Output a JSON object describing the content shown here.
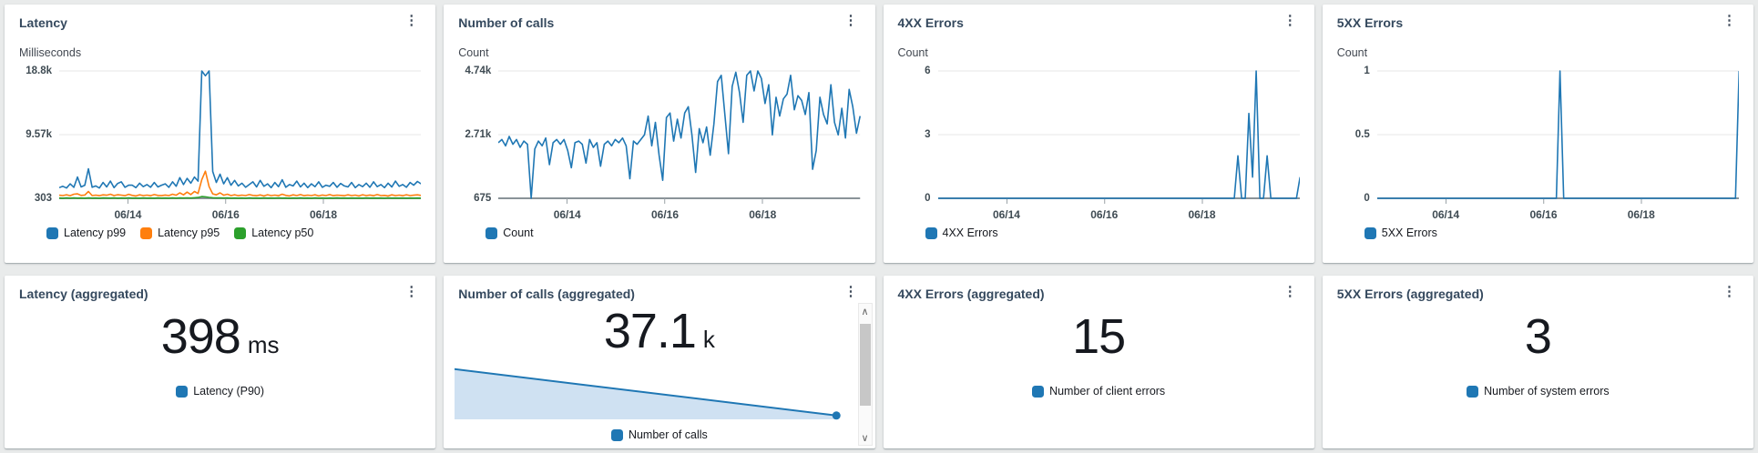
{
  "icons": {
    "ellipsis": "⋮",
    "scroll_up": "∧",
    "scroll_down": "∨"
  },
  "colors": {
    "series_blue": "#1f77b4",
    "series_orange": "#ff7f0e",
    "series_green": "#2ca02c",
    "area_fill": "#cfe1f2",
    "background": "#e9ebeb",
    "card": "#ffffff"
  },
  "agg": [
    {
      "title": "Latency (aggregated)",
      "value": "398",
      "unit": "ms",
      "legend": "Latency (P90)"
    },
    {
      "title": "Number of calls (aggregated)",
      "value": "37.1",
      "unit": "k",
      "legend": "Number of calls"
    },
    {
      "title": "4XX Errors (aggregated)",
      "value": "15",
      "unit": "",
      "legend": "Number of client errors"
    },
    {
      "title": "5XX Errors (aggregated)",
      "value": "3",
      "unit": "",
      "legend": "Number of system errors"
    }
  ],
  "chart_data": [
    {
      "id": "latency",
      "type": "line",
      "title": "Latency",
      "ylabel": "Milliseconds",
      "ylim": [
        303,
        18800
      ],
      "grid": true,
      "legend_position": "bottom",
      "yticks": [
        {
          "label": "18.8k",
          "value": 18800
        },
        {
          "label": "9.57k",
          "value": 9570
        },
        {
          "label": "303",
          "value": 303
        }
      ],
      "xticks": [
        {
          "label": "06/14",
          "pos": 0.19
        },
        {
          "label": "06/16",
          "pos": 0.46
        },
        {
          "label": "06/18",
          "pos": 0.73
        }
      ],
      "series": [
        {
          "name": "Latency p99",
          "color": "#1f77b4",
          "values": [
            1850,
            2050,
            1800,
            2400,
            1900,
            3400,
            1950,
            2200,
            4600,
            1900,
            2100,
            1800,
            2600,
            1950,
            2800,
            1850,
            2450,
            2700,
            1900,
            2200,
            2200,
            1850,
            2500,
            2000,
            2300,
            1900,
            2600,
            1950,
            2200,
            2400,
            1900,
            2700,
            2050,
            3300,
            2300,
            3200,
            2500,
            3400,
            2800,
            18800,
            18100,
            18800,
            4200,
            2600,
            3800,
            2400,
            3300,
            2200,
            2900,
            2100,
            2500,
            1900,
            2300,
            2700,
            1950,
            2900,
            2050,
            2400,
            1850,
            2600,
            2000,
            3000,
            1900,
            2300,
            2100,
            2800,
            1950,
            2500,
            1850,
            2400,
            2000,
            2700,
            1900,
            2200,
            2050,
            2600,
            1900,
            2450,
            2100,
            1950,
            2600,
            1850,
            2300,
            2000,
            2500,
            1900,
            2700,
            2000,
            2300,
            1850,
            2500,
            1950,
            2800,
            2050,
            2300,
            1900,
            2600,
            2200,
            2750,
            2400
          ]
        },
        {
          "name": "Latency p95",
          "color": "#ff7f0e",
          "values": [
            750,
            700,
            820,
            680,
            900,
            950,
            720,
            780,
            1300,
            700,
            760,
            690,
            800,
            750,
            900,
            700,
            820,
            760,
            680,
            880,
            720,
            650,
            800,
            700,
            760,
            680,
            850,
            720,
            690,
            780,
            700,
            900,
            750,
            1100,
            800,
            1200,
            850,
            1300,
            1000,
            3000,
            4240,
            2000,
            950,
            800,
            1100,
            750,
            900,
            700,
            820,
            680,
            760,
            700,
            850,
            720,
            680,
            790,
            650,
            820,
            700,
            760,
            680,
            900,
            720,
            650,
            800,
            700,
            850,
            680,
            760,
            700,
            820,
            650,
            780,
            700,
            850,
            690,
            760,
            720,
            680,
            800,
            700,
            760,
            650,
            820,
            700,
            780,
            680,
            850,
            700,
            720,
            650,
            800,
            700,
            760,
            680,
            820,
            700,
            750,
            800,
            720
          ]
        },
        {
          "name": "Latency p50",
          "color": "#2ca02c",
          "values": [
            340,
            320,
            350,
            330,
            360,
            325,
            345,
            315,
            355,
            330,
            340,
            320,
            360,
            345,
            330,
            350,
            320,
            340,
            330,
            355,
            325,
            340,
            320,
            350,
            330,
            345,
            320,
            355,
            330,
            340,
            325,
            350,
            335,
            360,
            340,
            370,
            345,
            380,
            420,
            550,
            520,
            430,
            380,
            350,
            360,
            340,
            355,
            330,
            345,
            325,
            340,
            320,
            350,
            330,
            345,
            320,
            355,
            330,
            340,
            325,
            350,
            330,
            340,
            320,
            345,
            330,
            350,
            325,
            340,
            320,
            350,
            330,
            345,
            320,
            340,
            330,
            350,
            325,
            340,
            320,
            345,
            330,
            340,
            320,
            350,
            330,
            345,
            325,
            340,
            320,
            350,
            330,
            340,
            325,
            345,
            320,
            340,
            330,
            345,
            335
          ]
        }
      ]
    },
    {
      "id": "calls",
      "type": "line",
      "title": "Number of calls",
      "ylabel": "Count",
      "ylim": [
        675,
        4740
      ],
      "grid": true,
      "legend_position": "bottom",
      "yticks": [
        {
          "label": "4.74k",
          "value": 4740
        },
        {
          "label": "2.71k",
          "value": 2710
        },
        {
          "label": "675",
          "value": 675
        }
      ],
      "xticks": [
        {
          "label": "06/14",
          "pos": 0.19
        },
        {
          "label": "06/16",
          "pos": 0.46
        },
        {
          "label": "06/18",
          "pos": 0.73
        }
      ],
      "series": [
        {
          "name": "Count",
          "color": "#1f77b4",
          "values": [
            2450,
            2550,
            2350,
            2650,
            2400,
            2550,
            2300,
            2500,
            2400,
            675,
            2250,
            2500,
            2350,
            2600,
            1750,
            2450,
            2550,
            2400,
            2550,
            2200,
            1650,
            2450,
            2500,
            2400,
            1800,
            2550,
            2300,
            2450,
            1700,
            2400,
            2500,
            2350,
            2550,
            2450,
            2600,
            2350,
            1300,
            2500,
            2400,
            2550,
            2700,
            3300,
            2350,
            3100,
            2050,
            1250,
            3250,
            3400,
            2500,
            3200,
            2600,
            3400,
            3600,
            2700,
            1500,
            2900,
            2450,
            2950,
            2050,
            3050,
            4400,
            4600,
            3350,
            2100,
            4250,
            4700,
            4050,
            3100,
            4600,
            4740,
            4100,
            4740,
            4500,
            3700,
            4300,
            2700,
            3900,
            3300,
            3850,
            4000,
            4600,
            3500,
            3950,
            3800,
            3350,
            4050,
            1600,
            2200,
            3900,
            3350,
            3050,
            4300,
            3100,
            2700,
            3550,
            2600,
            4150,
            3600,
            2750,
            3300
          ]
        }
      ]
    },
    {
      "id": "xx4",
      "type": "line",
      "title": "4XX Errors",
      "ylabel": "Count",
      "ylim": [
        0,
        6
      ],
      "grid": true,
      "legend_position": "bottom",
      "yticks": [
        {
          "label": "6",
          "value": 6
        },
        {
          "label": "3",
          "value": 3
        },
        {
          "label": "0",
          "value": 0
        }
      ],
      "xticks": [
        {
          "label": "06/14",
          "pos": 0.19
        },
        {
          "label": "06/16",
          "pos": 0.46
        },
        {
          "label": "06/18",
          "pos": 0.73
        }
      ],
      "series": [
        {
          "name": "4XX Errors",
          "color": "#1f77b4",
          "values": [
            0,
            0,
            0,
            0,
            0,
            0,
            0,
            0,
            0,
            0,
            0,
            0,
            0,
            0,
            0,
            0,
            0,
            0,
            0,
            0,
            0,
            0,
            0,
            0,
            0,
            0,
            0,
            0,
            0,
            0,
            0,
            0,
            0,
            0,
            0,
            0,
            0,
            0,
            0,
            0,
            0,
            0,
            0,
            0,
            0,
            0,
            0,
            0,
            0,
            0,
            0,
            0,
            0,
            0,
            0,
            0,
            0,
            0,
            0,
            0,
            0,
            0,
            0,
            0,
            0,
            0,
            0,
            0,
            0,
            0,
            0,
            0,
            0,
            0,
            0,
            0,
            0,
            0,
            0,
            0,
            0,
            0,
            2,
            0,
            0,
            4,
            1,
            6,
            0,
            0,
            2,
            0,
            0,
            0,
            0,
            0,
            0,
            0,
            0,
            1
          ]
        }
      ]
    },
    {
      "id": "xx5",
      "type": "line",
      "title": "5XX Errors",
      "ylabel": "Count",
      "ylim": [
        0,
        1
      ],
      "grid": true,
      "legend_position": "bottom",
      "yticks": [
        {
          "label": "1",
          "value": 1
        },
        {
          "label": "0.5",
          "value": 0.5
        },
        {
          "label": "0",
          "value": 0
        }
      ],
      "xticks": [
        {
          "label": "06/14",
          "pos": 0.19
        },
        {
          "label": "06/16",
          "pos": 0.46
        },
        {
          "label": "06/18",
          "pos": 0.73
        }
      ],
      "series": [
        {
          "name": "5XX Errors",
          "color": "#1f77b4",
          "values": [
            0,
            0,
            0,
            0,
            0,
            0,
            0,
            0,
            0,
            0,
            0,
            0,
            0,
            0,
            0,
            0,
            0,
            0,
            0,
            0,
            0,
            0,
            0,
            0,
            0,
            0,
            0,
            0,
            0,
            0,
            0,
            0,
            0,
            0,
            0,
            0,
            0,
            0,
            0,
            0,
            0,
            0,
            0,
            0,
            0,
            0,
            0,
            0,
            0,
            0,
            1,
            0,
            0,
            0,
            0,
            0,
            0,
            0,
            0,
            0,
            0,
            0,
            0,
            0,
            0,
            0,
            0,
            0,
            0,
            0,
            0,
            0,
            0,
            0,
            0,
            0,
            0,
            0,
            0,
            0,
            0,
            0,
            0,
            0,
            0,
            0,
            0,
            0,
            0,
            0,
            0,
            0,
            0,
            0,
            0,
            0,
            0,
            0,
            0,
            1
          ]
        }
      ]
    },
    {
      "id": "calls-sparkline",
      "type": "area",
      "fill_color": "#cfe1f2",
      "series": [
        {
          "name": "Number of calls",
          "color": "#1f77b4",
          "values_relative": [
            0.95,
            0.04
          ]
        }
      ]
    }
  ]
}
